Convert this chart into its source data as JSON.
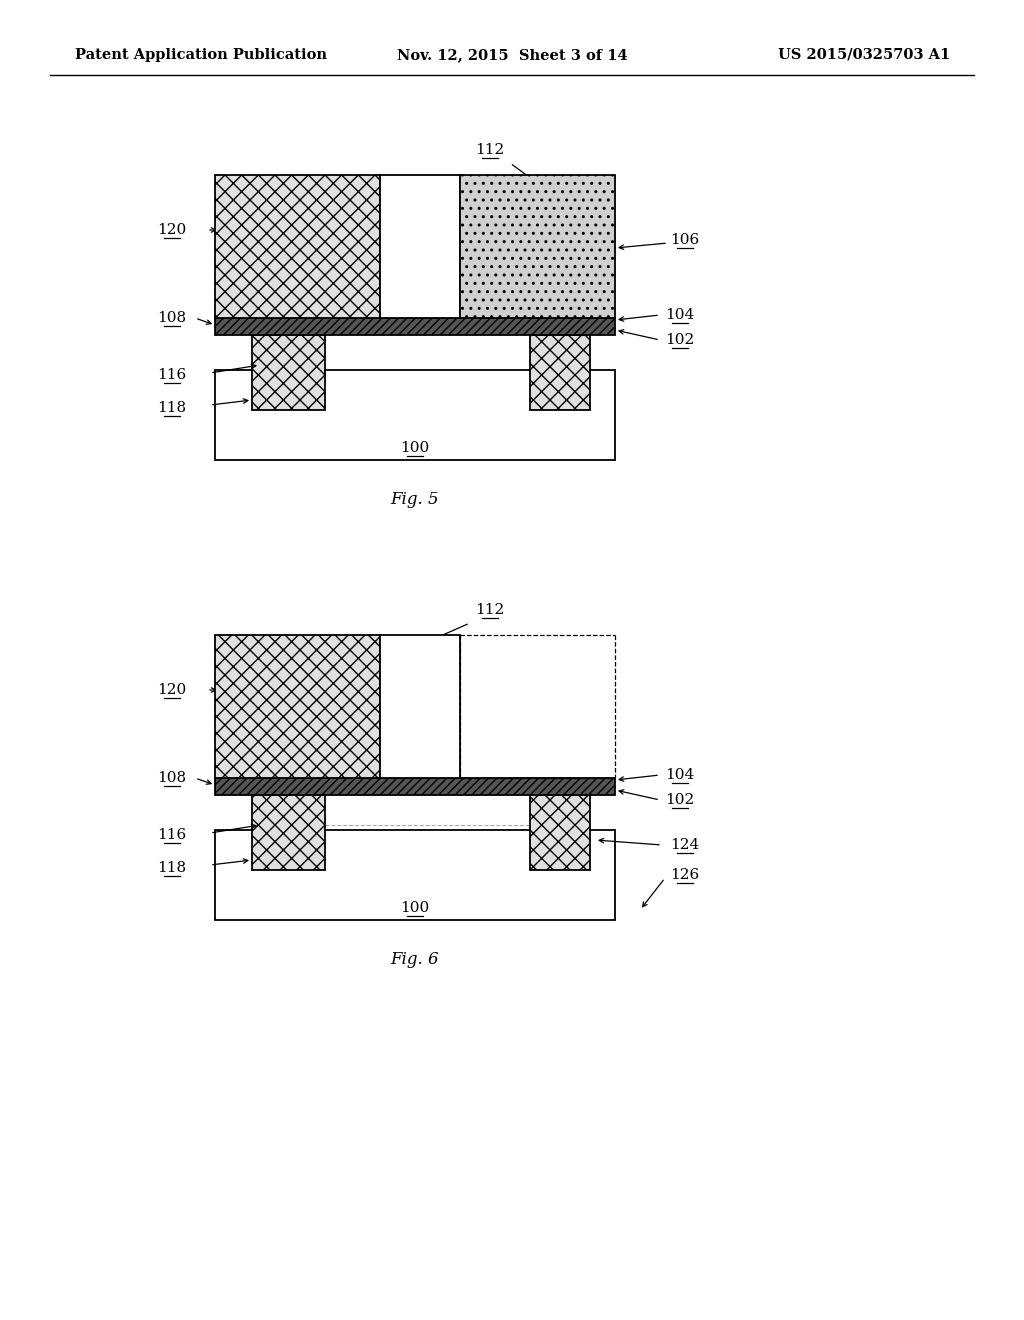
{
  "page_title_left": "Patent Application Publication",
  "page_title_mid": "Nov. 12, 2015  Sheet 3 of 14",
  "page_title_right": "US 2015/0325703 A1",
  "fig5_label": "Fig. 5",
  "fig6_label": "Fig. 6",
  "background_color": "#ffffff"
}
